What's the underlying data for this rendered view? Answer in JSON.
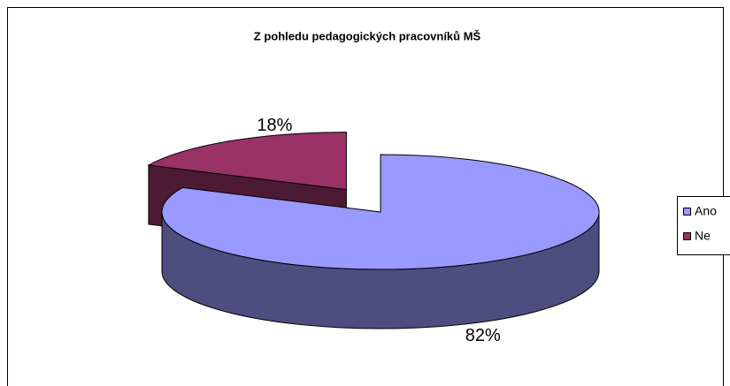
{
  "chart_data": {
    "type": "pie",
    "title": "Z pohledu pedagogických pracovníků MŠ",
    "categories": [
      "Ano",
      "Ne"
    ],
    "values": [
      82,
      18
    ],
    "value_labels": [
      "82%",
      "18%"
    ],
    "colors": [
      "#9999FF",
      "#993366"
    ],
    "legend": "right"
  }
}
